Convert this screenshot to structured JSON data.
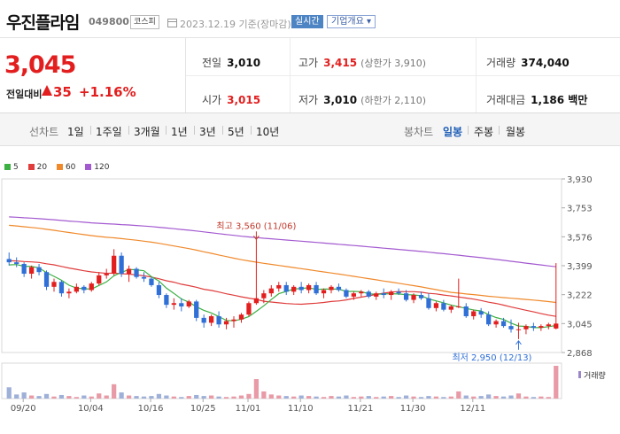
{
  "header": {
    "name": "우진플라임",
    "code": "049800",
    "market": "코스피",
    "date": "2023.12.19  기준(장마감)",
    "realtime_label": "실시간",
    "overview_label": "기업개요 ▾"
  },
  "quote": {
    "price": "3,045",
    "change_label": "전일대비",
    "change_amount": "35",
    "change_pct": "+1.16%"
  },
  "stats": {
    "prev_close": {
      "label": "전일",
      "value": "3,010"
    },
    "high": {
      "label": "고가",
      "value": "3,415",
      "sub": "(상한가 3,910)"
    },
    "volume": {
      "label": "거래량",
      "value": "374,040"
    },
    "open": {
      "label": "시가",
      "value": "3,015"
    },
    "low": {
      "label": "저가",
      "value": "3,010",
      "sub": "(하한가 2,110)"
    },
    "turnover": {
      "label": "거래대금",
      "value": "1,186 백만"
    }
  },
  "toolbar": {
    "line_label": "선차트",
    "periods": [
      "1일",
      "1주일",
      "3개월",
      "1년",
      "3년",
      "5년",
      "10년"
    ],
    "candle_label": "봉차트",
    "candle_periods": [
      "일봉",
      "주봉",
      "월봉"
    ],
    "active_candle": "일봉"
  },
  "colors": {
    "up": "#e21e1e",
    "down": "#2f6fd6",
    "ma5": "#3cb043",
    "ma20": "#e03c3c",
    "ma60": "#f0892b",
    "ma120": "#a35ad0"
  },
  "chart_data": {
    "type": "candlestick",
    "legend": [
      {
        "name": "5",
        "color": "#3cb043"
      },
      {
        "name": "20",
        "color": "#e03c3c"
      },
      {
        "name": "60",
        "color": "#f0892b"
      },
      {
        "name": "120",
        "color": "#a35ad0"
      }
    ],
    "y_ticks": [
      "3,930",
      "3,753",
      "3,576",
      "3,399",
      "3,222",
      "3,045",
      "2,868"
    ],
    "ylim": [
      2868,
      3930
    ],
    "x_labels": [
      "09/20",
      "10/04",
      "10/16",
      "10/25",
      "11/01",
      "11/10",
      "11/21",
      "11/30",
      "12/11"
    ],
    "volume_label": "거래량",
    "annotations": {
      "high": "최고 3,560 (11/06)",
      "low": "최저 2,950 (12/13)"
    },
    "candles": [
      [
        3440,
        3480,
        3400,
        3420
      ],
      [
        3420,
        3450,
        3390,
        3410
      ],
      [
        3410,
        3420,
        3330,
        3350
      ],
      [
        3350,
        3400,
        3320,
        3390
      ],
      [
        3390,
        3410,
        3340,
        3360
      ],
      [
        3360,
        3370,
        3250,
        3270
      ],
      [
        3270,
        3320,
        3240,
        3300
      ],
      [
        3300,
        3310,
        3210,
        3230
      ],
      [
        3230,
        3260,
        3200,
        3240
      ],
      [
        3240,
        3290,
        3230,
        3270
      ],
      [
        3270,
        3280,
        3230,
        3250
      ],
      [
        3250,
        3300,
        3240,
        3290
      ],
      [
        3290,
        3360,
        3280,
        3340
      ],
      [
        3340,
        3380,
        3320,
        3350
      ],
      [
        3350,
        3500,
        3340,
        3460
      ],
      [
        3460,
        3480,
        3330,
        3350
      ],
      [
        3350,
        3400,
        3300,
        3380
      ],
      [
        3380,
        3390,
        3320,
        3330
      ],
      [
        3330,
        3360,
        3300,
        3320
      ],
      [
        3320,
        3330,
        3270,
        3280
      ],
      [
        3280,
        3300,
        3200,
        3220
      ],
      [
        3220,
        3230,
        3140,
        3160
      ],
      [
        3160,
        3200,
        3130,
        3170
      ],
      [
        3170,
        3200,
        3120,
        3150
      ],
      [
        3150,
        3190,
        3140,
        3180
      ],
      [
        3180,
        3190,
        3060,
        3080
      ],
      [
        3080,
        3100,
        3020,
        3050
      ],
      [
        3050,
        3100,
        3030,
        3090
      ],
      [
        3090,
        3120,
        3020,
        3040
      ],
      [
        3040,
        3080,
        3010,
        3060
      ],
      [
        3060,
        3090,
        3020,
        3070
      ],
      [
        3070,
        3110,
        3050,
        3100
      ],
      [
        3100,
        3180,
        3090,
        3170
      ],
      [
        3170,
        3560,
        3160,
        3200
      ],
      [
        3200,
        3250,
        3170,
        3230
      ],
      [
        3230,
        3280,
        3210,
        3260
      ],
      [
        3260,
        3300,
        3240,
        3280
      ],
      [
        3280,
        3300,
        3220,
        3240
      ],
      [
        3240,
        3280,
        3220,
        3270
      ],
      [
        3270,
        3300,
        3230,
        3250
      ],
      [
        3250,
        3290,
        3230,
        3280
      ],
      [
        3280,
        3300,
        3220,
        3230
      ],
      [
        3230,
        3260,
        3200,
        3250
      ],
      [
        3250,
        3280,
        3230,
        3270
      ],
      [
        3270,
        3290,
        3240,
        3250
      ],
      [
        3250,
        3260,
        3200,
        3210
      ],
      [
        3210,
        3240,
        3190,
        3230
      ],
      [
        3230,
        3250,
        3210,
        3240
      ],
      [
        3240,
        3250,
        3200,
        3210
      ],
      [
        3210,
        3240,
        3190,
        3230
      ],
      [
        3230,
        3260,
        3200,
        3220
      ],
      [
        3220,
        3250,
        3190,
        3240
      ],
      [
        3240,
        3260,
        3220,
        3230
      ],
      [
        3230,
        3250,
        3180,
        3190
      ],
      [
        3190,
        3230,
        3170,
        3220
      ],
      [
        3220,
        3240,
        3190,
        3200
      ],
      [
        3200,
        3230,
        3130,
        3140
      ],
      [
        3140,
        3180,
        3120,
        3170
      ],
      [
        3170,
        3190,
        3120,
        3130
      ],
      [
        3130,
        3160,
        3110,
        3150
      ],
      [
        3150,
        3320,
        3140,
        3150
      ],
      [
        3150,
        3170,
        3080,
        3090
      ],
      [
        3090,
        3130,
        3070,
        3120
      ],
      [
        3120,
        3140,
        3080,
        3100
      ],
      [
        3100,
        3120,
        3030,
        3040
      ],
      [
        3040,
        3070,
        3020,
        3060
      ],
      [
        3060,
        3080,
        3020,
        3030
      ],
      [
        3030,
        3070,
        2990,
        3010
      ],
      [
        3010,
        3050,
        2950,
        3010
      ],
      [
        3010,
        3040,
        2980,
        3030
      ],
      [
        3030,
        3050,
        3000,
        3020
      ],
      [
        3020,
        3040,
        3000,
        3030
      ],
      [
        3030,
        3050,
        3010,
        3040
      ],
      [
        3015,
        3415,
        3010,
        3045
      ]
    ],
    "volumes": [
      22,
      8,
      12,
      6,
      5,
      9,
      4,
      7,
      5,
      3,
      6,
      4,
      10,
      6,
      28,
      12,
      6,
      5,
      4,
      5,
      9,
      6,
      4,
      3,
      5,
      7,
      5,
      6,
      4,
      3,
      4,
      6,
      9,
      38,
      14,
      8,
      6,
      5,
      4,
      6,
      5,
      4,
      3,
      5,
      4,
      6,
      3,
      4,
      5,
      3,
      4,
      5,
      3,
      6,
      4,
      3,
      5,
      4,
      3,
      4,
      14,
      6,
      4,
      5,
      8,
      5,
      4,
      6,
      10,
      4,
      3,
      4,
      3,
      64
    ]
  }
}
